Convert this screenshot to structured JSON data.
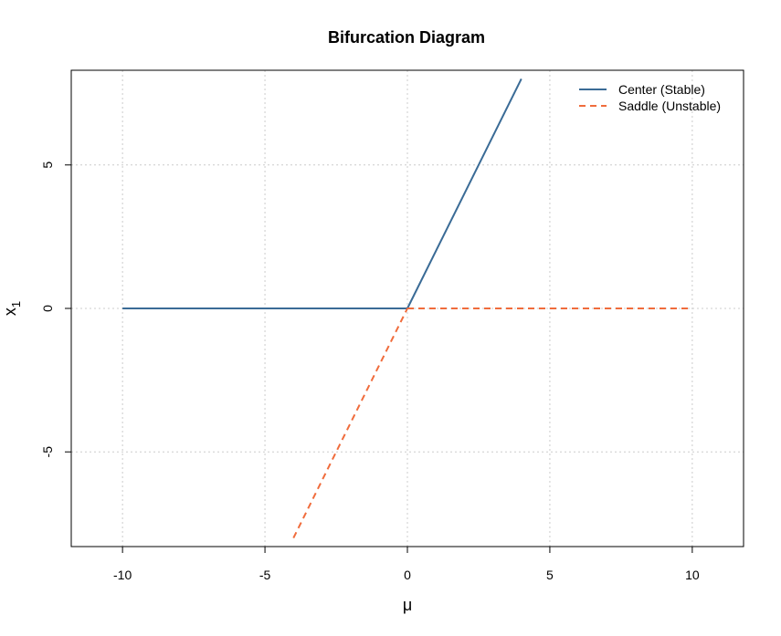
{
  "chart_data": {
    "type": "line",
    "title": "Bifurcation Diagram",
    "xlabel": "μ",
    "ylabel_main": "x",
    "ylabel_sub": "1",
    "xlim": [
      -11.8,
      11.8
    ],
    "ylim": [
      -8.3,
      8.3
    ],
    "xticks": [
      -10,
      -5,
      0,
      5,
      10
    ],
    "yticks": [
      -5,
      0,
      5
    ],
    "xtick_labels": [
      "-10",
      "-5",
      "0",
      "5",
      "10"
    ],
    "ytick_labels": [
      "-5",
      "0",
      "5"
    ],
    "grid": true,
    "legend_position": "top-right",
    "series": [
      {
        "name": "Center (Stable)",
        "color": "#3a6b96",
        "dash": "solid",
        "segments": [
          [
            [
              -10,
              0
            ],
            [
              0,
              0
            ]
          ],
          [
            [
              0,
              0
            ],
            [
              4,
              8
            ]
          ]
        ]
      },
      {
        "name": "Saddle (Unstable)",
        "color": "#f06c3c",
        "dash": "dashed",
        "segments": [
          [
            [
              -4,
              -8
            ],
            [
              0,
              0
            ]
          ],
          [
            [
              0,
              0
            ],
            [
              10,
              0
            ]
          ]
        ]
      }
    ]
  }
}
